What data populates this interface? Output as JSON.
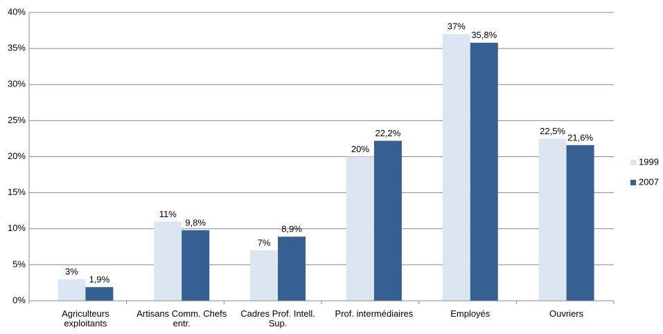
{
  "chart_data": {
    "type": "bar",
    "categories": [
      "Agriculteurs exploitants",
      "Artisans Comm. Chefs entr.",
      "Cadres Prof. Intell. Sup.",
      "Prof. intermédiaires",
      "Employés",
      "Ouvriers"
    ],
    "series": [
      {
        "name": "1999",
        "color": "#dce6f2",
        "values": [
          3,
          11,
          7,
          20,
          37,
          22.5
        ],
        "value_labels": [
          "3%",
          "11%",
          "7%",
          "20%",
          "37%",
          "22,5%"
        ]
      },
      {
        "name": "2007",
        "color": "#376092",
        "values": [
          1.9,
          9.8,
          8.9,
          22.2,
          35.8,
          21.6
        ],
        "value_labels": [
          "1,9%",
          "9,8%",
          "8,9%",
          "22,2%",
          "35,8%",
          "21,6%"
        ]
      }
    ],
    "ylim": [
      0,
      40
    ],
    "yticks": [
      {
        "value": 0,
        "label": "0%"
      },
      {
        "value": 5,
        "label": "5%"
      },
      {
        "value": 10,
        "label": "10%"
      },
      {
        "value": 15,
        "label": "15%"
      },
      {
        "value": 20,
        "label": "20%"
      },
      {
        "value": 25,
        "label": "25%"
      },
      {
        "value": 30,
        "label": "30%"
      },
      {
        "value": 35,
        "label": "35%"
      },
      {
        "value": 40,
        "label": "40%"
      }
    ],
    "grid": true,
    "legend": "right"
  }
}
